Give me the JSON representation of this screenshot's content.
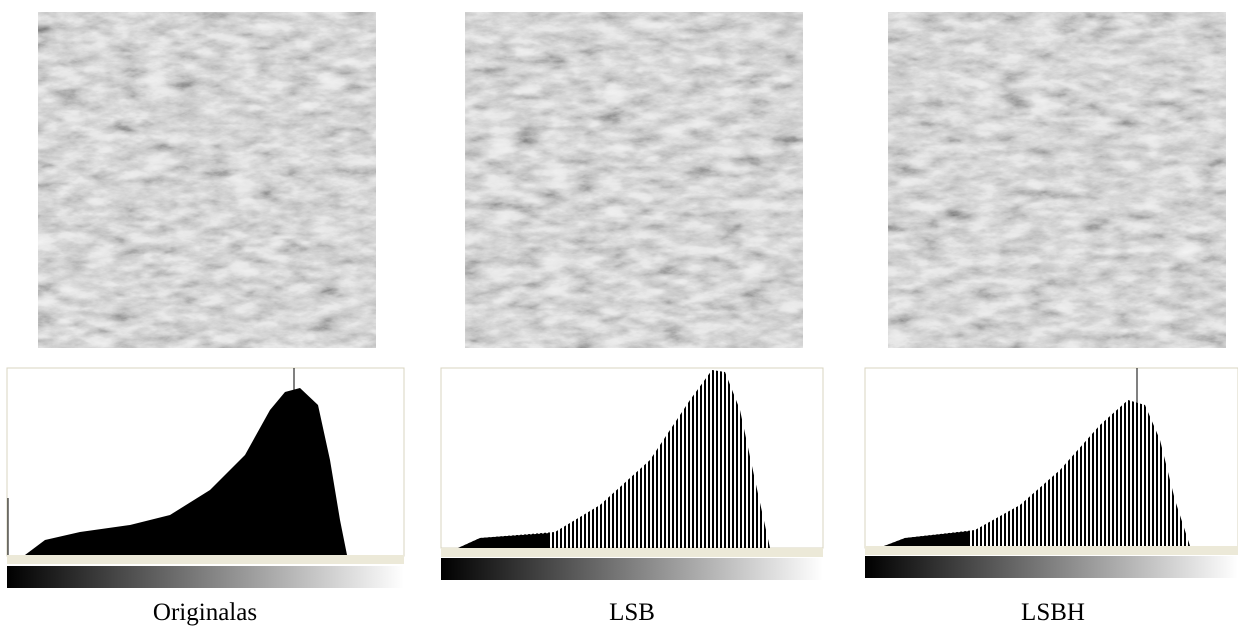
{
  "panels": [
    {
      "caption": "Originalas"
    },
    {
      "caption": "LSB"
    },
    {
      "caption": "LSBH"
    }
  ]
}
